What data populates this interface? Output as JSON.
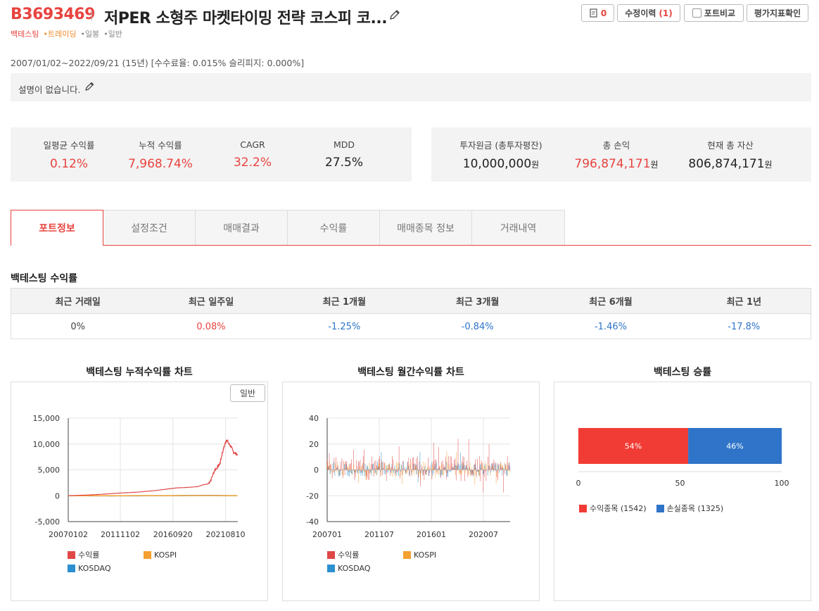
{
  "header": {
    "code": "B3693469",
    "title": "저PER 소형주 마켓타이밍 전략 코스피 코...",
    "tags": [
      "백테스팅",
      "•트레이딩",
      "•일봉",
      "•일반"
    ],
    "buttons": {
      "comment_count": "0",
      "revision_label": "수정이력",
      "revision_count": "(1)",
      "compare_label": "포트비교",
      "indicator_label": "평가지표확인"
    }
  },
  "period_text": "2007/01/02~2022/09/21 (15년) [수수료율: 0.015% 슬리피지: 0.000%]",
  "description": "설명이 없습니다.",
  "stats_left": [
    {
      "label": "일평균 수익률",
      "value": "0.12%"
    },
    {
      "label": "누적 수익률",
      "value": "7,968.74%"
    },
    {
      "label": "CAGR",
      "value": "32.2%"
    },
    {
      "label": "MDD",
      "value": "27.5%"
    }
  ],
  "stats_right": [
    {
      "label": "투자원금 (총투자평잔)",
      "value": "10,000,000",
      "unit": "원"
    },
    {
      "label": "총 손익",
      "value": "796,874,171",
      "unit": "원"
    },
    {
      "label": "현재 총 자산",
      "value": "806,874,171",
      "unit": "원"
    }
  ],
  "tabs": [
    "포트정보",
    "설정조건",
    "매매결과",
    "수익률",
    "매매종목 정보",
    "거래내역"
  ],
  "section_title": "백테스팅 수익률",
  "period_table": {
    "headers": [
      "최근 거래일",
      "최근 일주일",
      "최근 1개월",
      "최근 3개월",
      "최근 6개월",
      "최근 1년"
    ],
    "values": [
      "0%",
      "0.08%",
      "-1.25%",
      "-0.84%",
      "-1.46%",
      "-17.8%"
    ]
  },
  "colors": {
    "accent": "#e8433f",
    "negative": "#2f74c8",
    "return": "#e04848",
    "kospi": "#f5a030",
    "kosdaq": "#2b8fd0"
  },
  "cum_chart_title": "백테스팅 누적수익률 차트",
  "cum_toggle": "일반",
  "monthly_chart_title": "백테스팅 월간수익률 차트",
  "winrate_title": "백테스팅 승률",
  "chart_data": [
    {
      "type": "line",
      "title": "백테스팅 누적수익률 차트",
      "ylim": [
        -5000,
        15000
      ],
      "yticks": [
        "15,000",
        "10,000",
        "5,000",
        "0",
        "-5,000"
      ],
      "xticks": [
        "20070102",
        "20111102",
        "20160920",
        "20210810"
      ],
      "series": [
        {
          "name": "수익률",
          "x": [
            2007.0,
            2008.0,
            2009.0,
            2010.0,
            2011.0,
            2012.0,
            2013.0,
            2014.0,
            2015.0,
            2016.0,
            2017.0,
            2018.0,
            2019.0,
            2019.5,
            2020.0,
            2020.3,
            2020.6,
            2020.9,
            2021.1,
            2021.3,
            2021.5,
            2021.7,
            2021.9,
            2022.1,
            2022.3,
            2022.5,
            2022.72
          ],
          "values": [
            0,
            80,
            150,
            260,
            420,
            540,
            640,
            800,
            980,
            1250,
            1500,
            1600,
            1750,
            2100,
            2300,
            3300,
            5000,
            5600,
            6300,
            8200,
            9600,
            10900,
            10100,
            9600,
            8600,
            8200,
            8000
          ]
        },
        {
          "name": "KOSPI",
          "x": [
            2007.0,
            2011.0,
            2016.0,
            2020.0,
            2022.72
          ],
          "values": [
            0,
            10,
            20,
            40,
            10
          ]
        },
        {
          "name": "KOSDAQ",
          "x": [
            2007.0,
            2011.0,
            2016.0,
            2020.0,
            2022.72
          ],
          "values": [
            0,
            -30,
            0,
            60,
            -10
          ]
        }
      ]
    },
    {
      "type": "bar",
      "title": "백테스팅 월간수익률 차트",
      "ylim": [
        -40,
        40
      ],
      "yticks": [
        "40",
        "20",
        "0",
        "-20",
        "-40"
      ],
      "xticks": [
        "200701",
        "201107",
        "201601",
        "202007"
      ],
      "series_names": [
        "수익률",
        "KOSPI",
        "KOSDAQ"
      ]
    },
    {
      "type": "bar",
      "title": "백테스팅 승률",
      "xlim": [
        0,
        100
      ],
      "xticks": [
        "0",
        "50",
        "100"
      ],
      "series": [
        {
          "name": "수익종목 (1542)",
          "value": 54,
          "label": "54%"
        },
        {
          "name": "손실종목 (1325)",
          "value": 46,
          "label": "46%"
        }
      ]
    }
  ]
}
